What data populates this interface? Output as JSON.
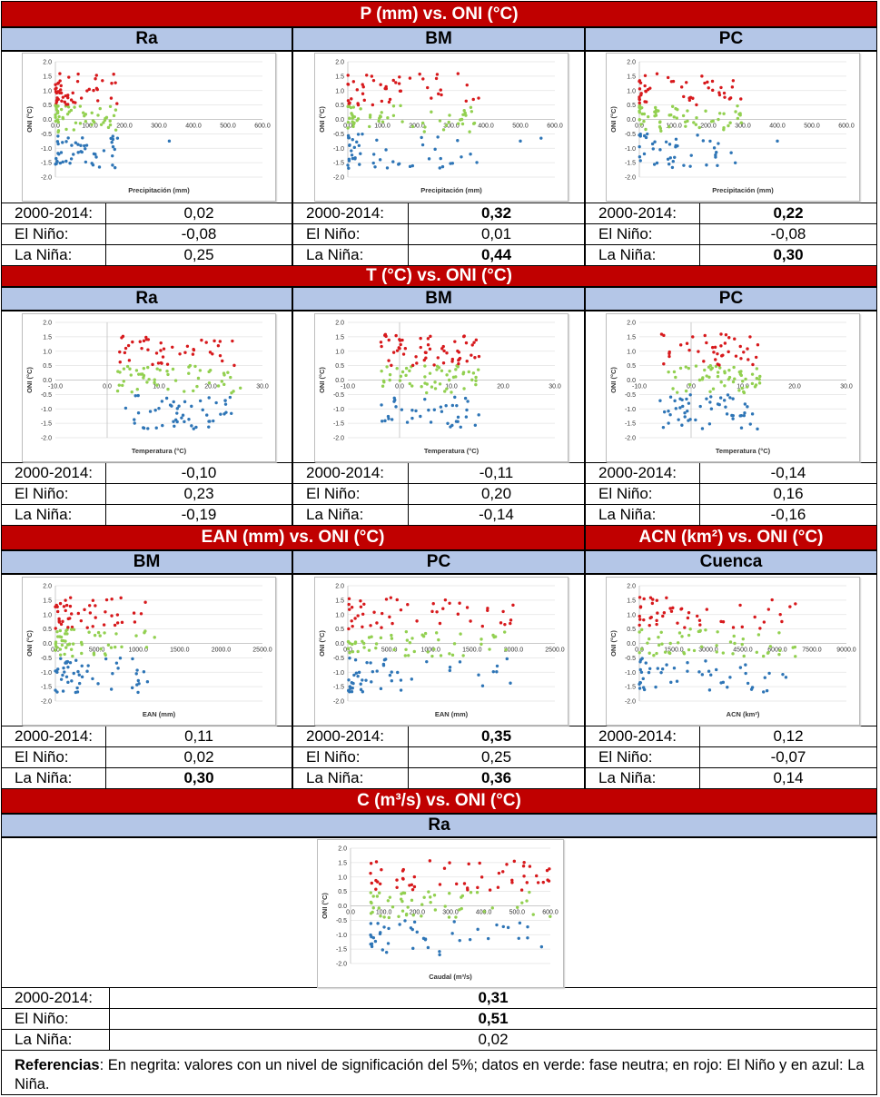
{
  "sections": {
    "precip": "P (mm) vs. ONI (°C)",
    "temp": "T (°C) vs. ONI (°C)",
    "ean": "EAN (mm) vs. ONI (°C)",
    "acn": "ACN (km²) vs. ONI (°C)",
    "flow": "C (m³/s) vs. ONI (°C)"
  },
  "columns": {
    "ra": "Ra",
    "bm": "BM",
    "pc": "PC",
    "cuenca": "Cuenca"
  },
  "row_labels": {
    "all": "2000-2014:",
    "nino": "El Niño:",
    "nina": "La Niña:"
  },
  "stats": {
    "precip": {
      "ra": {
        "all": "0,02",
        "nino": "-0,08",
        "nina": "0,25"
      },
      "bm": {
        "all": "0,32",
        "nino": "0,01",
        "nina": "0,44"
      },
      "pc": {
        "all": "0,22",
        "nino": "-0,08",
        "nina": "0,30"
      }
    },
    "temp": {
      "ra": {
        "all": "-0,10",
        "nino": "0,23",
        "nina": "-0,19"
      },
      "bm": {
        "all": "-0,11",
        "nino": "0,20",
        "nina": "-0,14"
      },
      "pc": {
        "all": "-0,14",
        "nino": "0,16",
        "nina": "-0,16"
      }
    },
    "ean": {
      "bm": {
        "all": "0,11",
        "nino": "0,02",
        "nina": "0,30"
      },
      "pc": {
        "all": "0,35",
        "nino": "0,25",
        "nina": "0,36"
      }
    },
    "acn": {
      "cuenca": {
        "all": "0,12",
        "nino": "-0,07",
        "nina": "0,14"
      }
    },
    "flow": {
      "ra": {
        "all": "0,31",
        "nino": "0,51",
        "nina": "0,02"
      }
    }
  },
  "notes": {
    "label": "Referencias",
    "text": ": En negrita: valores con un nivel de significación del 5%; datos en verde: fase neutra; en rojo: El Niño y en azul: La Niña."
  },
  "chart_data": [
    {
      "id": "precip-ra",
      "type": "scatter",
      "xlabel": "Precipitación (mm)",
      "ylabel": "ONI (°C)",
      "xlim": [
        0,
        600
      ],
      "ylim": [
        -2,
        2
      ],
      "xticks": [
        "0.0",
        "100.0",
        "200.0",
        "300.0",
        "400.0",
        "500.0",
        "600.0"
      ],
      "yticks": [
        "2.0",
        "1.5",
        "1.0",
        "0.5",
        "0.0",
        "-0.5",
        "-1.0",
        "-1.5",
        "-2.0"
      ],
      "colors": {
        "nino": "#d7191c",
        "neutral": "#92d050",
        "nina": "#2e75b6"
      },
      "spread": 180,
      "outliers": [
        330,
        180
      ]
    },
    {
      "id": "precip-bm",
      "type": "scatter",
      "xlabel": "Precipitación (mm)",
      "ylabel": "ONI (°C)",
      "xlim": [
        0,
        600
      ],
      "ylim": [
        -2,
        2
      ],
      "xticks": [
        "0.0",
        "100.0",
        "200.0",
        "300.0",
        "400.0",
        "500.0",
        "600.0"
      ],
      "yticks": [
        "2.0",
        "1.5",
        "1.0",
        "0.5",
        "0.0",
        "-0.5",
        "-1.0",
        "-1.5",
        "-2.0"
      ],
      "colors": {
        "nino": "#d7191c",
        "neutral": "#92d050",
        "nina": "#2e75b6"
      },
      "spread": 380,
      "outliers": [
        500,
        560
      ]
    },
    {
      "id": "precip-pc",
      "type": "scatter",
      "xlabel": "Precipitación (mm)",
      "ylabel": "ONI (°C)",
      "xlim": [
        0,
        600
      ],
      "ylim": [
        -2,
        2
      ],
      "xticks": [
        "0.0",
        "100.0",
        "200.0",
        "300.0",
        "400.0",
        "500.0",
        "600.0"
      ],
      "yticks": [
        "2.0",
        "1.5",
        "1.0",
        "0.5",
        "0.0",
        "-0.5",
        "-1.0",
        "-1.5",
        "-2.0"
      ],
      "colors": {
        "nino": "#d7191c",
        "neutral": "#92d050",
        "nina": "#2e75b6"
      },
      "spread": 300,
      "outliers": [
        400
      ]
    },
    {
      "id": "temp-ra",
      "type": "scatter",
      "xlabel": "Temperatura (°C)",
      "ylabel": "ONI (°C)",
      "xlim": [
        -10,
        30
      ],
      "ylim": [
        -2,
        2
      ],
      "xticks": [
        "-10.0",
        "0.0",
        "10.0",
        "20.0",
        "30.0"
      ],
      "yticks": [
        "2.0",
        "1.5",
        "1.0",
        "0.5",
        "0.0",
        "-0.5",
        "-1.0",
        "-1.5",
        "-2.0"
      ],
      "colors": {
        "nino": "#d7191c",
        "neutral": "#92d050",
        "nina": "#2e75b6"
      },
      "band": [
        2,
        26
      ]
    },
    {
      "id": "temp-bm",
      "type": "scatter",
      "xlabel": "Temperatura (°C)",
      "ylabel": "ONI (°C)",
      "xlim": [
        -10,
        30
      ],
      "ylim": [
        -2,
        2
      ],
      "xticks": [
        "-10.0",
        "0.0",
        "10.0",
        "20.0",
        "30.0"
      ],
      "yticks": [
        "2.0",
        "1.5",
        "1.0",
        "0.5",
        "0.0",
        "-0.5",
        "-1.0",
        "-1.5",
        "-2.0"
      ],
      "colors": {
        "nino": "#d7191c",
        "neutral": "#92d050",
        "nina": "#2e75b6"
      },
      "band": [
        -4,
        16
      ]
    },
    {
      "id": "temp-pc",
      "type": "scatter",
      "xlabel": "Temperatura (°C)",
      "ylabel": "ONI (°C)",
      "xlim": [
        -10,
        30
      ],
      "ylim": [
        -2,
        2
      ],
      "xticks": [
        "-10.0",
        "0.0",
        "10.0",
        "20.0",
        "30.0"
      ],
      "yticks": [
        "2.0",
        "1.5",
        "1.0",
        "0.5",
        "0.0",
        "-0.5",
        "-1.0",
        "-1.5",
        "-2.0"
      ],
      "colors": {
        "nino": "#d7191c",
        "neutral": "#92d050",
        "nina": "#2e75b6"
      },
      "band": [
        -6,
        14
      ]
    },
    {
      "id": "ean-bm",
      "type": "scatter",
      "xlabel": "EAN (mm)",
      "ylabel": "ONI (°C)",
      "xlim": [
        0,
        2500
      ],
      "ylim": [
        -2,
        2
      ],
      "xticks": [
        "0.0",
        "500.0",
        "1000.0",
        "1500.0",
        "2000.0",
        "2500.0"
      ],
      "yticks": [
        "2.0",
        "1.5",
        "1.0",
        "0.5",
        "0.0",
        "-0.5",
        "-1.0",
        "-1.5",
        "-2.0"
      ],
      "colors": {
        "nino": "#d7191c",
        "neutral": "#92d050",
        "nina": "#2e75b6"
      },
      "spread": 1250,
      "outliers": []
    },
    {
      "id": "ean-pc",
      "type": "scatter",
      "xlabel": "EAN (mm)",
      "ylabel": "ONI (°C)",
      "xlim": [
        0,
        2500
      ],
      "ylim": [
        -2,
        2
      ],
      "xticks": [
        "0.0",
        "500.0",
        "1000.0",
        "1500.0",
        "2000.0",
        "2500.0"
      ],
      "yticks": [
        "2.0",
        "1.5",
        "1.0",
        "0.5",
        "0.0",
        "-0.5",
        "-1.0",
        "-1.5",
        "-2.0"
      ],
      "colors": {
        "nino": "#d7191c",
        "neutral": "#92d050",
        "nina": "#2e75b6"
      },
      "spread": 2000,
      "outliers": []
    },
    {
      "id": "acn-cuenca",
      "type": "scatter",
      "xlabel": "ACN (km²)",
      "ylabel": "ONI (°C)",
      "xlim": [
        0,
        9000
      ],
      "ylim": [
        -2,
        2
      ],
      "xticks": [
        "0.0",
        "1500.0",
        "3000.0",
        "4500.0",
        "6000.0",
        "7500.0",
        "9000.0"
      ],
      "yticks": [
        "2.0",
        "1.5",
        "1.0",
        "0.5",
        "0.0",
        "-0.5",
        "-1.0",
        "-1.5",
        "-2.0"
      ],
      "colors": {
        "nino": "#d7191c",
        "neutral": "#92d050",
        "nina": "#2e75b6"
      },
      "spread": 7000,
      "outliers": []
    },
    {
      "id": "flow-ra",
      "type": "scatter",
      "xlabel": "Caudal (m³/s)",
      "ylabel": "ONI (°C)",
      "xlim": [
        0,
        600
      ],
      "ylim": [
        -2,
        2
      ],
      "xticks": [
        "0.0",
        "100.0",
        "200.0",
        "300.0",
        "400.0",
        "500.0",
        "600.0"
      ],
      "yticks": [
        "2.0",
        "1.5",
        "1.0",
        "0.5",
        "0.0",
        "-0.5",
        "-1.0",
        "-1.5",
        "-2.0"
      ],
      "colors": {
        "nino": "#d7191c",
        "neutral": "#92d050",
        "nina": "#2e75b6"
      },
      "spread": 600,
      "outliers": [],
      "min": 60
    }
  ]
}
